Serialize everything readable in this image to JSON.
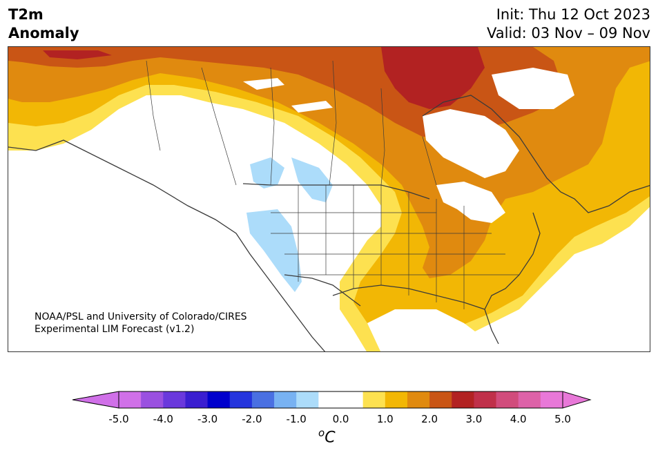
{
  "title": {
    "line1": "T2m",
    "line2": "Anomaly"
  },
  "header": {
    "init": "Init: Thu 12 Oct 2023",
    "valid": "Valid: 03 Nov – 09 Nov"
  },
  "credit": {
    "line1": "NOAA/PSL and University of Colorado/CIRES",
    "line2": "Experimental LIM Forecast (v1.2)"
  },
  "colorbar": {
    "unit_symbol": "o",
    "unit_letter": "C",
    "ticks": [
      "-5.0",
      "-4.0",
      "-3.0",
      "-2.0",
      "-1.0",
      "0.0",
      "1.0",
      "2.0",
      "3.0",
      "4.0",
      "5.0"
    ],
    "colors": [
      "#d070e8",
      "#9a50e0",
      "#6a38dc",
      "#3a1ed0",
      "#0000cc",
      "#2535dd",
      "#4a70e2",
      "#78b2f2",
      "#acdcfa",
      "#ffffff",
      "#ffffff",
      "#fde150",
      "#f2b705",
      "#e08a0f",
      "#c95515",
      "#b22222",
      "#c0304a",
      "#d14c7c",
      "#dd62a8",
      "#e878d8"
    ],
    "under_color": "#d070e8",
    "over_color": "#e878d8"
  },
  "map_colors": {
    "anom_0_5": "#fde150",
    "anom_1_0": "#f2b705",
    "anom_1_5": "#e08a0f",
    "anom_2_0": "#c95515",
    "anom_2_5": "#b22222",
    "anom_neg_0_5": "#acdcfa",
    "water": "#ffffff",
    "coastline": "#3a3a3a"
  }
}
